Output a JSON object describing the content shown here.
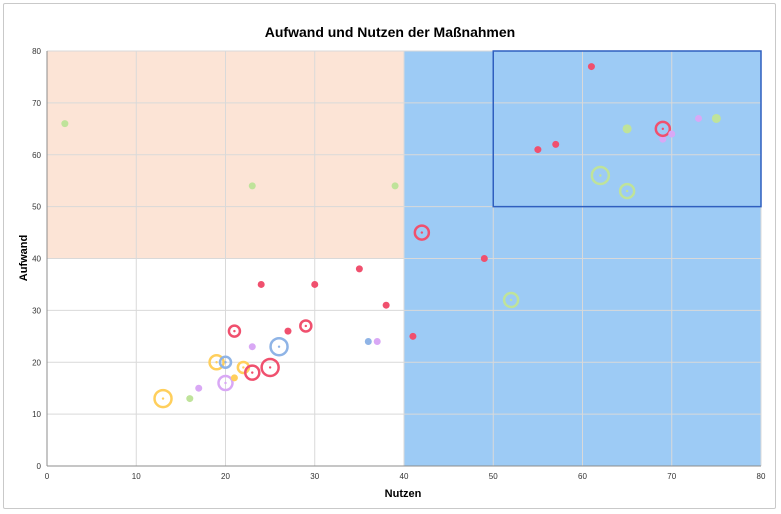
{
  "chart_data": {
    "type": "scatter",
    "title": "Aufwand und Nutzen der Maßnahmen",
    "xlabel": "Nutzen",
    "ylabel": "Aufwand",
    "xlim": [
      0,
      80
    ],
    "ylim": [
      0,
      80
    ],
    "xticks": [
      0,
      10,
      20,
      30,
      40,
      50,
      60,
      70,
      80
    ],
    "yticks": [
      0,
      10,
      20,
      30,
      40,
      50,
      60,
      70,
      80
    ],
    "grid": true,
    "regions": [
      {
        "name": "high-effort-low-benefit",
        "x": [
          0,
          40
        ],
        "y": [
          40,
          80
        ],
        "color": "#fce4d6"
      },
      {
        "name": "high-benefit",
        "x": [
          40,
          80
        ],
        "y": [
          0,
          80
        ],
        "color": "#9dcbf5"
      },
      {
        "name": "priority-box",
        "x": [
          50,
          80
        ],
        "y": [
          50,
          80
        ],
        "color": "#2f5fbf"
      }
    ],
    "colors": {
      "red": "#f0506e",
      "green": "#bfe39a",
      "yellow": "#ffcf5c",
      "purple": "#d9a8f5",
      "blue": "#8fb4e6"
    },
    "points": [
      {
        "x": 2,
        "y": 66,
        "color": "green",
        "style": "dot"
      },
      {
        "x": 23,
        "y": 54,
        "color": "green",
        "style": "dot"
      },
      {
        "x": 39,
        "y": 54,
        "color": "green",
        "style": "dot"
      },
      {
        "x": 13,
        "y": 13,
        "color": "yellow",
        "style": "ring",
        "size": "l"
      },
      {
        "x": 16,
        "y": 13,
        "color": "green",
        "style": "dot"
      },
      {
        "x": 17,
        "y": 15,
        "color": "purple",
        "style": "dot"
      },
      {
        "x": 19,
        "y": 20,
        "color": "yellow",
        "style": "ring",
        "size": "m"
      },
      {
        "x": 20,
        "y": 20,
        "color": "blue",
        "style": "ring",
        "size": "s"
      },
      {
        "x": 20,
        "y": 16,
        "color": "purple",
        "style": "ring",
        "size": "m"
      },
      {
        "x": 21,
        "y": 17,
        "color": "yellow",
        "style": "dot"
      },
      {
        "x": 21,
        "y": 26,
        "color": "red",
        "style": "ring",
        "size": "s"
      },
      {
        "x": 22,
        "y": 19,
        "color": "yellow",
        "style": "ring",
        "size": "s"
      },
      {
        "x": 23,
        "y": 18,
        "color": "red",
        "style": "ring",
        "size": "m"
      },
      {
        "x": 23,
        "y": 23,
        "color": "purple",
        "style": "dot"
      },
      {
        "x": 24,
        "y": 35,
        "color": "red",
        "style": "dot"
      },
      {
        "x": 25,
        "y": 19,
        "color": "red",
        "style": "ring",
        "size": "l"
      },
      {
        "x": 26,
        "y": 23,
        "color": "blue",
        "style": "ring",
        "size": "l"
      },
      {
        "x": 27,
        "y": 26,
        "color": "red",
        "style": "dot"
      },
      {
        "x": 29,
        "y": 27,
        "color": "red",
        "style": "ring",
        "size": "s"
      },
      {
        "x": 30,
        "y": 35,
        "color": "red",
        "style": "dot"
      },
      {
        "x": 35,
        "y": 38,
        "color": "red",
        "style": "dot"
      },
      {
        "x": 36,
        "y": 24,
        "color": "blue",
        "style": "dot"
      },
      {
        "x": 37,
        "y": 24,
        "color": "purple",
        "style": "dot"
      },
      {
        "x": 38,
        "y": 31,
        "color": "red",
        "style": "dot"
      },
      {
        "x": 41,
        "y": 25,
        "color": "red",
        "style": "dot"
      },
      {
        "x": 42,
        "y": 45,
        "color": "red",
        "style": "ring",
        "size": "m"
      },
      {
        "x": 49,
        "y": 40,
        "color": "red",
        "style": "dot"
      },
      {
        "x": 52,
        "y": 32,
        "color": "green",
        "style": "ring",
        "size": "m"
      },
      {
        "x": 55,
        "y": 61,
        "color": "red",
        "style": "dot"
      },
      {
        "x": 57,
        "y": 62,
        "color": "red",
        "style": "dot"
      },
      {
        "x": 61,
        "y": 77,
        "color": "red",
        "style": "dot"
      },
      {
        "x": 62,
        "y": 56,
        "color": "green",
        "style": "ring",
        "size": "l"
      },
      {
        "x": 65,
        "y": 53,
        "color": "green",
        "style": "ring",
        "size": "m"
      },
      {
        "x": 65,
        "y": 65,
        "color": "green",
        "style": "dot",
        "size": "l"
      },
      {
        "x": 69,
        "y": 63,
        "color": "purple",
        "style": "dot"
      },
      {
        "x": 69,
        "y": 65,
        "color": "red",
        "style": "ring",
        "size": "m"
      },
      {
        "x": 70,
        "y": 64,
        "color": "purple",
        "style": "dot"
      },
      {
        "x": 73,
        "y": 67,
        "color": "purple",
        "style": "dot"
      },
      {
        "x": 75,
        "y": 67,
        "color": "green",
        "style": "dot",
        "size": "l"
      }
    ]
  }
}
